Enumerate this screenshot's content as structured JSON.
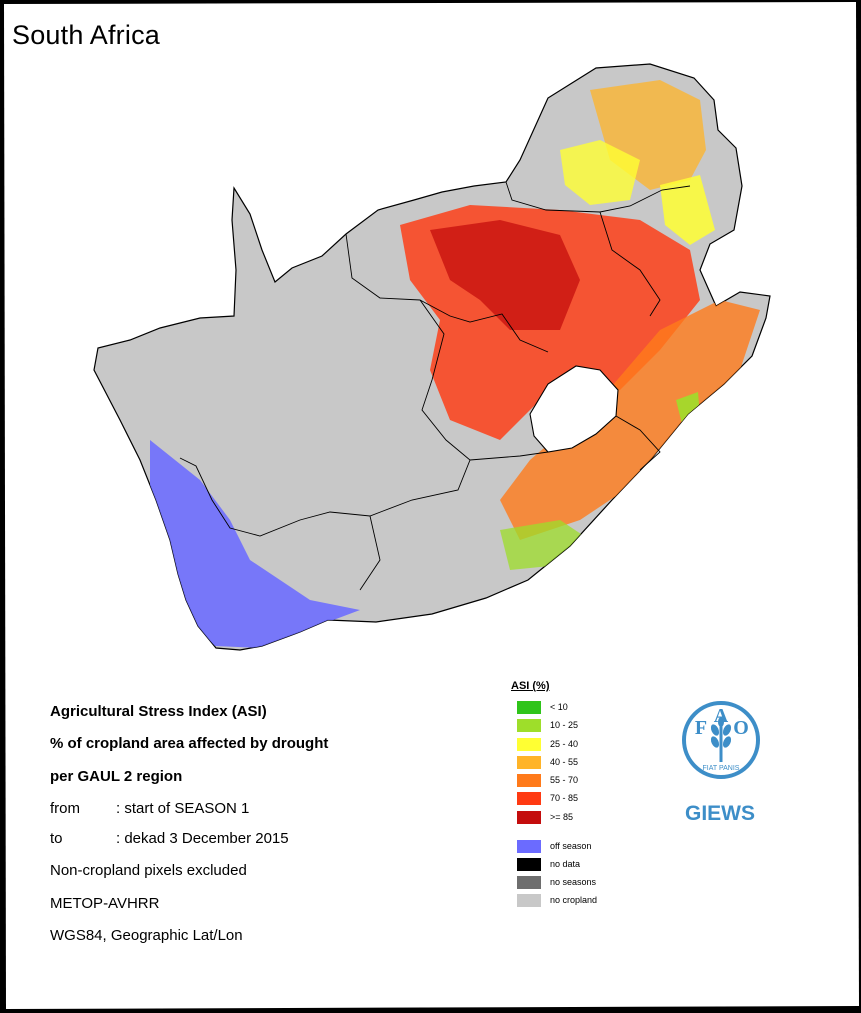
{
  "title": "South Africa",
  "info": {
    "line1": "Agricultural Stress Index (ASI)",
    "line2": "% of cropland area affected by drought",
    "line3": "per GAUL 2 region",
    "from_label": "from",
    "from_value": ": start of SEASON 1",
    "to_label": "to",
    "to_value": ": dekad 3 December 2015",
    "line6": "Non-cropland pixels excluded",
    "line7": "METOP-AVHRR",
    "line8": "WGS84, Geographic Lat/Lon"
  },
  "legend": {
    "title": "ASI (%)",
    "classes": [
      {
        "label": "< 10",
        "color": "#2fc41a"
      },
      {
        "label": "10 - 25",
        "color": "#9ede2a"
      },
      {
        "label": "25 - 40",
        "color": "#ffff33"
      },
      {
        "label": "40 - 55",
        "color": "#ffb428"
      },
      {
        "label": "55 - 70",
        "color": "#ff7a1a"
      },
      {
        "label": "70 - 85",
        "color": "#ff3a12"
      },
      {
        "label": ">= 85",
        "color": "#c40d0d"
      }
    ],
    "extra": [
      {
        "label": "off season",
        "color": "#6b6bff"
      },
      {
        "label": "no data",
        "color": "#000000"
      },
      {
        "label": "no seasons",
        "color": "#6e6e6e"
      },
      {
        "label": "no cropland",
        "color": "#c8c8c8"
      }
    ]
  },
  "logo": {
    "letters": [
      "F",
      "A",
      "O"
    ],
    "motto": "FIAT PANIS",
    "name": "GIEWS",
    "color": "#3d8ec8"
  },
  "map_colors": {
    "background": "#c8c8c8",
    "border": "#000000",
    "lesotho": "#ffffff"
  }
}
